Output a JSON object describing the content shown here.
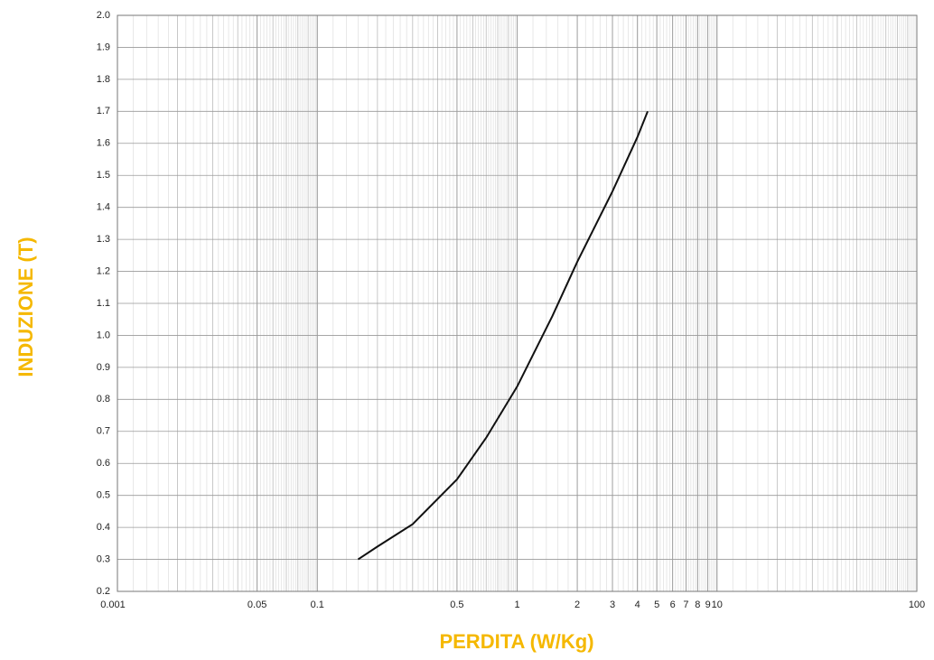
{
  "chart_data": {
    "type": "line",
    "xlabel": "PERDITA (W/Kg)",
    "ylabel": "INDUZIONE (T)",
    "x_scale": "log",
    "grid": true,
    "xlim": [
      0.01,
      100
    ],
    "left_corner_label": "0.001",
    "xticks": [
      0.05,
      0.1,
      0.5,
      1,
      2,
      3,
      4,
      5,
      6,
      7,
      8,
      9,
      10,
      100
    ],
    "ylim": [
      0.2,
      2.0
    ],
    "yticks": [
      0.2,
      0.3,
      0.4,
      0.5,
      0.6,
      0.7,
      0.8,
      0.9,
      {
        "value": 1.0,
        "label": "1.0"
      },
      1.1,
      1.2,
      1.3,
      1.4,
      1.5,
      1.6,
      1.7,
      1.8,
      1.9,
      {
        "value": 2.0,
        "label": "2.0"
      }
    ],
    "series": [
      {
        "color": "#111111",
        "x": [
          0.16,
          0.2,
          0.3,
          0.5,
          0.7,
          1,
          1.5,
          2,
          3,
          4,
          4.5
        ],
        "values": [
          0.3,
          0.34,
          0.41,
          0.55,
          0.68,
          0.84,
          1.06,
          1.23,
          1.45,
          1.62,
          1.7
        ]
      }
    ]
  }
}
